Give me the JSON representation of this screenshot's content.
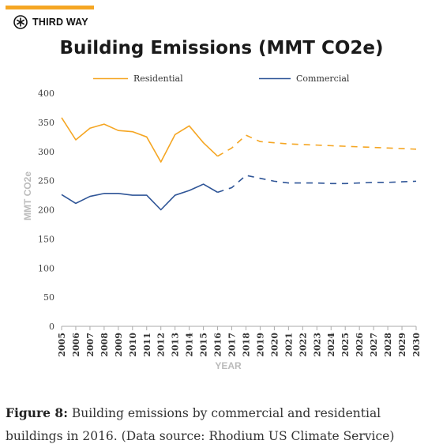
{
  "brand": {
    "name": "THIRD WAY"
  },
  "colors": {
    "accent": "#f5a623",
    "residential": "#f5a623",
    "commercial": "#2f5597",
    "axis": "#999999"
  },
  "chart_data": {
    "type": "line",
    "title": "Building Emissions (MMT CO2e)",
    "xlabel": "YEAR",
    "ylabel": "MMT CO2e",
    "ylim": [
      0,
      400
    ],
    "yticks": [
      0,
      50,
      100,
      150,
      200,
      250,
      300,
      350,
      400
    ],
    "x": [
      "2005",
      "2006",
      "2007",
      "2008",
      "2009",
      "2010",
      "2011",
      "2012",
      "2013",
      "2014",
      "2015",
      "2016",
      "2017",
      "2018",
      "2019",
      "2020",
      "2021",
      "2022",
      "2023",
      "2024",
      "2025",
      "2026",
      "2027",
      "2028",
      "2029",
      "2030"
    ],
    "legend_position": "top",
    "series": [
      {
        "name": "Residential",
        "historical": [
          358,
          320,
          340,
          347,
          336,
          334,
          325,
          282,
          329,
          344,
          315,
          292
        ],
        "projected": [
          null,
          null,
          null,
          null,
          null,
          null,
          null,
          null,
          null,
          null,
          null,
          292,
          306,
          328,
          317,
          315,
          313,
          312,
          311,
          310,
          309,
          308,
          307,
          306,
          305,
          304
        ]
      },
      {
        "name": "Commercial",
        "historical": [
          226,
          211,
          223,
          228,
          228,
          225,
          225,
          200,
          225,
          233,
          244,
          230
        ],
        "projected": [
          null,
          null,
          null,
          null,
          null,
          null,
          null,
          null,
          null,
          null,
          null,
          230,
          238,
          259,
          254,
          249,
          246,
          246,
          246,
          245,
          245,
          246,
          247,
          247,
          248,
          249
        ]
      }
    ]
  },
  "caption": {
    "label": "Figure 8:",
    "text": " Building emissions by commercial and residential buildings in 2016. (Data source: Rhodium US Climate Service)"
  }
}
